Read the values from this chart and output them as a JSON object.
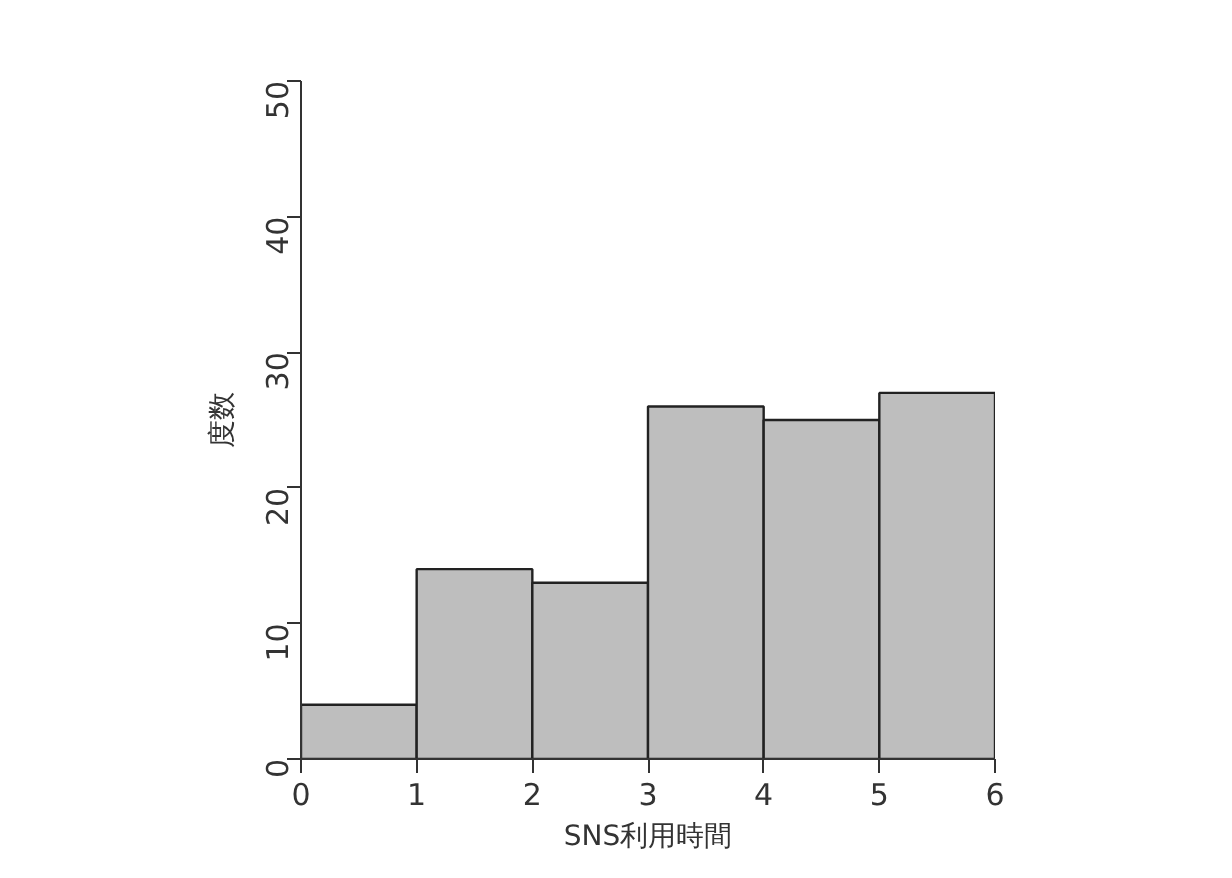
{
  "chart_data": {
    "type": "histogram",
    "xlabel": "SNS利用時間",
    "ylabel": "度数",
    "bins": [
      0,
      1,
      2,
      3,
      4,
      5,
      6
    ],
    "values": [
      4,
      14,
      13,
      26,
      25,
      27
    ],
    "color": "#bebebe",
    "xlim": [
      0,
      6
    ],
    "xticks": [
      0,
      1,
      2,
      3,
      4,
      5,
      6
    ],
    "ylim": [
      0,
      50
    ],
    "yticks": [
      0,
      10,
      20,
      30,
      40,
      50
    ],
    "grid": false
  }
}
